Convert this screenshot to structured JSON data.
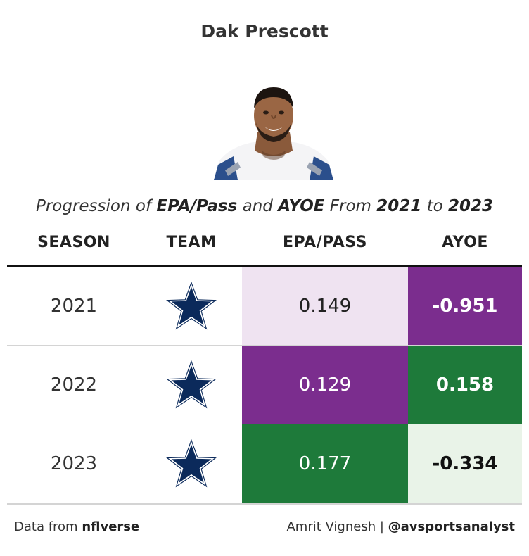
{
  "title": "Dak Prescott",
  "subtitle": {
    "p1": "Progression of ",
    "b1": "EPA/Pass",
    "p2": " and ",
    "b2": "AYOE",
    "p3": " From ",
    "b3": "2021",
    "p4": " to ",
    "b4": "2023"
  },
  "columns": {
    "season": "SEASON",
    "team": "TEAM",
    "epa": "EPA/PASS",
    "ayoe": "AYOE"
  },
  "team_logo_icon": "star-logo-icon",
  "colors": {
    "star_fill": "#0b2a5b",
    "star_outline": "#ffffff",
    "purple": "#7b2d8e",
    "light_purple": "#efe3f1",
    "green": "#1e7a3a",
    "light_green": "#e9f3e8"
  },
  "rows": [
    {
      "season": "2021",
      "epa": "0.149",
      "ayoe": "-0.951",
      "epa_bg": "#efe3f1",
      "epa_fg": "#222222",
      "ayoe_bg": "#7b2d8e",
      "ayoe_fg": "#ffffff"
    },
    {
      "season": "2022",
      "epa": "0.129",
      "ayoe": "0.158",
      "epa_bg": "#7b2d8e",
      "epa_fg": "#ffffff",
      "ayoe_bg": "#1e7a3a",
      "ayoe_fg": "#ffffff"
    },
    {
      "season": "2023",
      "epa": "0.177",
      "ayoe": "-0.334",
      "epa_bg": "#1e7a3a",
      "epa_fg": "#ffffff",
      "ayoe_bg": "#e9f3e8",
      "ayoe_fg": "#111111"
    }
  ],
  "footer": {
    "left_prefix": "Data from ",
    "left_source": "nflverse",
    "right_author": "Amrit Vignesh | ",
    "right_handle": "@avsportsanalyst"
  }
}
